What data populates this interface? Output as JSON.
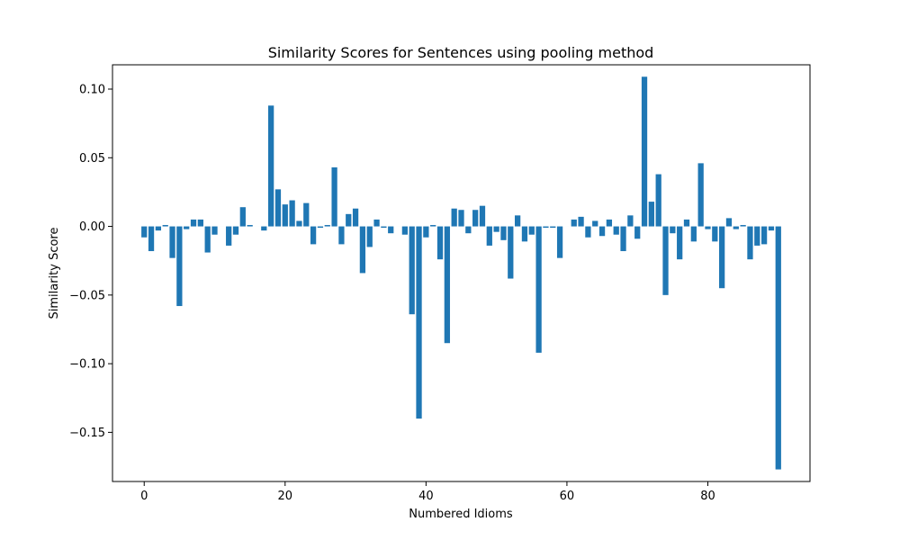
{
  "chart_data": {
    "type": "bar",
    "title": "Similarity Scores for Sentences using pooling method",
    "xlabel": "Numbered Idioms",
    "ylabel": "Similarity Score",
    "x": [
      0,
      1,
      2,
      3,
      4,
      5,
      6,
      7,
      8,
      9,
      10,
      11,
      12,
      13,
      14,
      15,
      16,
      17,
      18,
      19,
      20,
      21,
      22,
      23,
      24,
      25,
      26,
      27,
      28,
      29,
      30,
      31,
      32,
      33,
      34,
      35,
      36,
      37,
      38,
      39,
      40,
      41,
      42,
      43,
      44,
      45,
      46,
      47,
      48,
      49,
      50,
      51,
      52,
      53,
      54,
      55,
      56,
      57,
      58,
      59,
      60,
      61,
      62,
      63,
      64,
      65,
      66,
      67,
      68,
      69,
      70,
      71,
      72,
      73,
      74,
      75,
      76,
      77,
      78,
      79,
      80,
      81,
      82,
      83,
      84,
      85,
      86,
      87,
      88,
      89,
      90
    ],
    "values": [
      -0.008,
      -0.018,
      -0.003,
      0.001,
      -0.023,
      -0.058,
      -0.002,
      0.005,
      0.005,
      -0.019,
      -0.006,
      0.0,
      -0.014,
      -0.006,
      0.014,
      0.001,
      0.0,
      -0.003,
      0.088,
      0.027,
      0.016,
      0.019,
      0.004,
      0.017,
      -0.013,
      -0.001,
      0.001,
      0.043,
      -0.013,
      0.009,
      0.013,
      -0.034,
      -0.015,
      0.005,
      -0.001,
      -0.005,
      0.0,
      -0.006,
      -0.064,
      -0.14,
      -0.008,
      0.001,
      -0.024,
      -0.085,
      0.013,
      0.012,
      -0.005,
      0.012,
      0.015,
      -0.014,
      -0.004,
      -0.01,
      -0.038,
      0.008,
      -0.011,
      -0.006,
      -0.092,
      -0.001,
      -0.001,
      -0.023,
      0.0,
      0.005,
      0.007,
      -0.008,
      0.004,
      -0.007,
      0.005,
      -0.006,
      -0.018,
      0.008,
      -0.009,
      0.109,
      0.018,
      0.038,
      -0.05,
      -0.005,
      -0.024,
      0.005,
      -0.011,
      0.046,
      -0.002,
      -0.011,
      -0.045,
      0.006,
      -0.002,
      0.001,
      -0.024,
      -0.014,
      -0.013,
      -0.003,
      -0.177
    ],
    "xlim": [
      -4.5,
      94.5
    ],
    "ylim": [
      -0.1858,
      0.1177
    ],
    "xticks": [
      0,
      20,
      40,
      60,
      80
    ],
    "xtick_labels": [
      "0",
      "20",
      "40",
      "60",
      "80"
    ],
    "yticks": [
      0.1,
      0.05,
      0.0,
      -0.05,
      -0.1,
      -0.15
    ],
    "ytick_labels": [
      "0.10",
      "0.05",
      "0.00",
      "−0.05",
      "−0.10",
      "−0.15"
    ],
    "bar_color": "#1f77b4",
    "grid": false,
    "legend": "none"
  }
}
